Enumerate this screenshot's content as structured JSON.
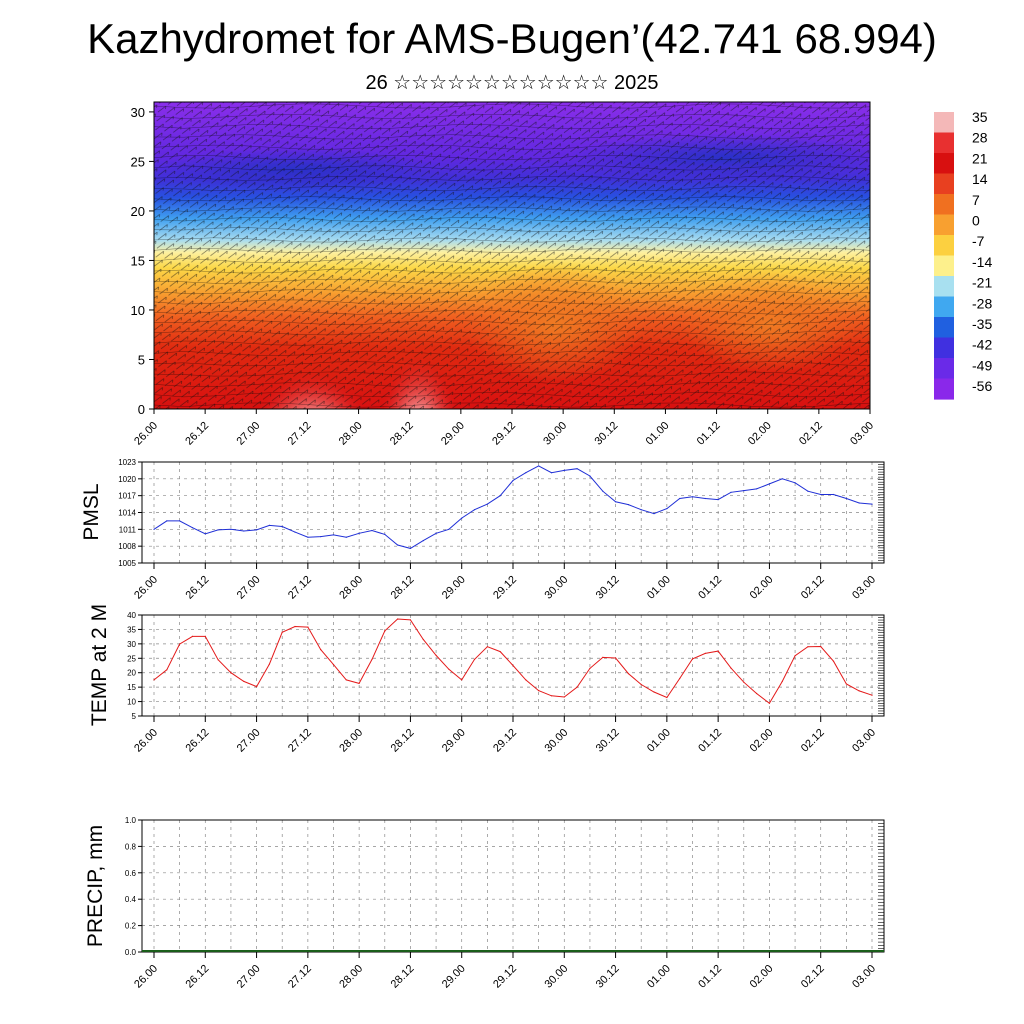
{
  "header": {
    "title": "Kazhydromet for AMS-Bugen’(42.741 68.994)",
    "subtitle": "26 ☆☆☆☆☆☆☆☆☆☆☆☆ 2025"
  },
  "chart_data": [
    {
      "type": "heatmap",
      "name": "cross-section",
      "title": "",
      "xlabel": "",
      "ylabel": "",
      "x_tick_labels": [
        "26.00",
        "26.12",
        "27.00",
        "27.12",
        "28.00",
        "28.12",
        "29.00",
        "29.12",
        "30.00",
        "30.12",
        "01.00",
        "01.12",
        "02.00",
        "02.12",
        "03.00"
      ],
      "y_ticks": [
        0,
        5,
        10,
        15,
        20,
        25,
        30
      ],
      "ylim": [
        0,
        31
      ],
      "colorbar_labels": [
        "35",
        "28",
        "21",
        "14",
        "7",
        "0",
        "-7",
        "-14",
        "-21",
        "-28",
        "-35",
        "-42",
        "-49",
        "-56"
      ],
      "colorbar_colors": [
        "#f4b8b8",
        "#e83030",
        "#d81010",
        "#e84020",
        "#f07020",
        "#f8a030",
        "#fcd040",
        "#fdf08c",
        "#a8e0f0",
        "#40a8f0",
        "#2060e0",
        "#4030e0",
        "#6a2ae8",
        "#8a28ea"
      ],
      "wind_barbs": true
    },
    {
      "type": "line",
      "name": "PMSL",
      "ylabel": "PMSL",
      "ylim": [
        1005,
        1023
      ],
      "y_ticks": [
        1005,
        1008,
        1011,
        1014,
        1017,
        1020,
        1023
      ],
      "x_tick_labels": [
        "26.00",
        "26.12",
        "27.00",
        "27.12",
        "28.00",
        "28.12",
        "29.00",
        "29.12",
        "30.00",
        "30.12",
        "01.00",
        "01.12",
        "02.00",
        "02.12",
        "03.00"
      ],
      "color": "#1f2fd6",
      "grid": true,
      "x": [
        0,
        0.25,
        0.5,
        0.75,
        1,
        1.25,
        1.5,
        1.75,
        2,
        2.25,
        2.5,
        2.75,
        3,
        3.25,
        3.5,
        3.75,
        4,
        4.25,
        4.5,
        4.75,
        5,
        5.25,
        5.5,
        5.75,
        6,
        6.25,
        6.5,
        6.75,
        7,
        7.25,
        7.5,
        7.75,
        8,
        8.25,
        8.5,
        8.75,
        9,
        9.25,
        9.5,
        9.75,
        10,
        10.25,
        10.5,
        10.75,
        11,
        11.25,
        11.5,
        11.75,
        12,
        12.25,
        12.5,
        12.75,
        13,
        13.25,
        13.5,
        13.75,
        14
      ],
      "values": [
        1011,
        1012.5,
        1012.5,
        1011.3,
        1010.2,
        1010.9,
        1011,
        1010.7,
        1010.9,
        1011.7,
        1011.5,
        1010.5,
        1009.6,
        1009.7,
        1010,
        1009.6,
        1010.3,
        1010.8,
        1010.1,
        1008.2,
        1007.6,
        1009,
        1010.3,
        1011,
        1013,
        1014.5,
        1015.5,
        1017,
        1019.7,
        1021.1,
        1022.3,
        1021.1,
        1021.5,
        1021.8,
        1020.5,
        1017.8,
        1015.9,
        1015.4,
        1014.5,
        1013.8,
        1014.7,
        1016.5,
        1016.8,
        1016.5,
        1016.3,
        1017.6,
        1017.9,
        1018.2,
        1019.1,
        1020,
        1019.3,
        1017.8,
        1017.2,
        1017.2,
        1016.5,
        1015.7,
        1015.5
      ]
    },
    {
      "type": "line",
      "name": "TEMP at 2 M",
      "ylabel": "TEMP at 2 M",
      "ylim": [
        5,
        40
      ],
      "y_ticks": [
        5,
        10,
        15,
        20,
        25,
        30,
        35,
        40
      ],
      "x_tick_labels": [
        "26.00",
        "26.12",
        "27.00",
        "27.12",
        "28.00",
        "28.12",
        "29.00",
        "29.12",
        "30.00",
        "30.12",
        "01.00",
        "01.12",
        "02.00",
        "02.12",
        "03.00"
      ],
      "color": "#e41a1a",
      "grid": true,
      "x": [
        0,
        0.25,
        0.5,
        0.75,
        1,
        1.25,
        1.5,
        1.75,
        2,
        2.25,
        2.5,
        2.75,
        3,
        3.25,
        3.5,
        3.75,
        4,
        4.25,
        4.5,
        4.75,
        5,
        5.25,
        5.5,
        5.75,
        6,
        6.25,
        6.5,
        6.75,
        7,
        7.25,
        7.5,
        7.75,
        8,
        8.25,
        8.5,
        8.75,
        9,
        9.25,
        9.5,
        9.75,
        10,
        10.25,
        10.5,
        10.75,
        11,
        11.25,
        11.5,
        11.75,
        12,
        12.25,
        12.5,
        12.75,
        13,
        13.25,
        13.5,
        13.75,
        14
      ],
      "values": [
        17.5,
        21,
        29.9,
        32.6,
        32.6,
        24.5,
        20,
        17,
        15.2,
        23,
        34,
        36,
        35.8,
        28,
        22.8,
        17.5,
        16.3,
        24.6,
        34.5,
        38.6,
        38.3,
        31.5,
        26,
        21.2,
        17.5,
        24.6,
        29,
        27.3,
        22.5,
        17.5,
        13.8,
        12,
        11.6,
        15,
        21.5,
        25.3,
        25.1,
        19.7,
        15.9,
        13.3,
        11.4,
        18,
        24.8,
        26.7,
        27.5,
        21.6,
        16.7,
        12.8,
        9.4,
        17,
        25.9,
        29,
        29.1,
        24,
        16.1,
        13.7,
        12.2
      ]
    },
    {
      "type": "bar",
      "name": "PRECIP",
      "ylabel": "PRECIP, mm",
      "ylim": [
        0,
        1
      ],
      "y_ticks": [
        "0.0",
        "0.2",
        "0.4",
        "0.6",
        "0.8",
        "1.0"
      ],
      "x_tick_labels": [
        "26.00",
        "26.12",
        "27.00",
        "27.12",
        "28.00",
        "28.12",
        "29.00",
        "29.12",
        "30.00",
        "30.12",
        "01.00",
        "01.12",
        "02.00",
        "02.12",
        "03.00"
      ],
      "color": "#1a5e1a",
      "grid": true,
      "values": [
        0,
        0,
        0,
        0,
        0,
        0,
        0,
        0,
        0,
        0,
        0,
        0,
        0,
        0,
        0
      ]
    }
  ]
}
